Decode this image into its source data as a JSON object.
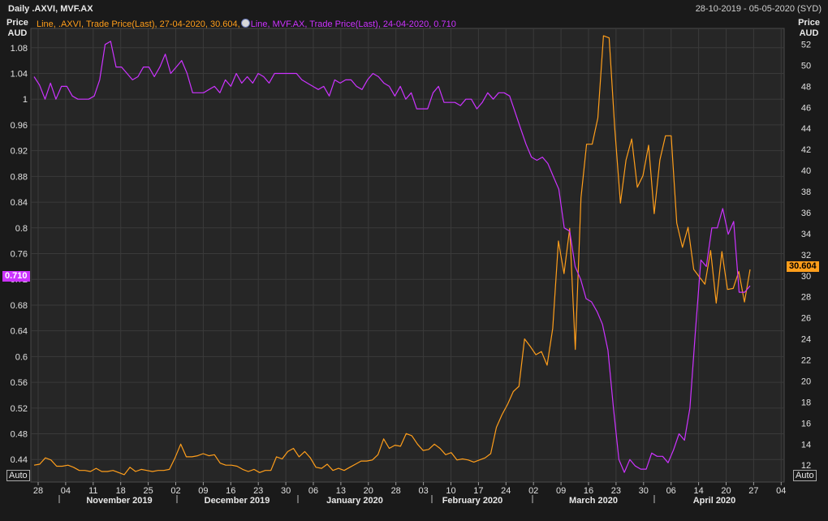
{
  "header": {
    "title": "Daily .AXVI, MVF.AX",
    "date_range": "28-10-2019 - 05-05-2020 (SYD)"
  },
  "legend": {
    "axvi_text": "Line, .AXVI, Trade Price(Last), 27-04-2020, 30.604,",
    "mvf_text": "Line, MVF.AX, Trade Price(Last), 24-04-2020, 0.710"
  },
  "axes": {
    "left_unit_line1": "Price",
    "left_unit_line2": "AUD",
    "right_unit_line1": "Price",
    "right_unit_line2": "AUD",
    "auto_left": "Auto",
    "auto_right": "Auto"
  },
  "last_value_tags": {
    "mvf": "0.710",
    "axvi": "30.604"
  },
  "colors": {
    "background": "#1a1a1a",
    "plot_background": "#262626",
    "grid": "#3a3a3a",
    "axvi": "#ff9e1b",
    "mvf": "#cc33ff"
  },
  "chart_data": {
    "type": "line",
    "x_tick_labels": [
      "28",
      "04",
      "11",
      "18",
      "25",
      "02",
      "09",
      "16",
      "23",
      "30",
      "06",
      "13",
      "20",
      "28",
      "03",
      "10",
      "17",
      "24",
      "02",
      "09",
      "16",
      "23",
      "30",
      "06",
      "14",
      "20",
      "27",
      "04"
    ],
    "month_labels": [
      "November 2019",
      "December 2019",
      "January 2020",
      "February 2020",
      "March 2020",
      "April 2020"
    ],
    "left_axis": {
      "ylim": [
        0.405,
        1.11
      ],
      "ticks": [
        "0.44",
        "0.48",
        "0.52",
        "0.56",
        "0.6",
        "0.64",
        "0.68",
        "0.72",
        "0.76",
        "0.8",
        "0.84",
        "0.88",
        "0.92",
        "0.96",
        "1",
        "1.04",
        "1.08"
      ]
    },
    "right_axis": {
      "ylim": [
        10.4,
        53.5
      ],
      "ticks": [
        "12",
        "14",
        "16",
        "18",
        "20",
        "22",
        "24",
        "26",
        "28",
        "30",
        "32",
        "34",
        "36",
        "38",
        "40",
        "42",
        "44",
        "46",
        "48",
        "50",
        "52"
      ]
    },
    "series": [
      {
        "name": ".AXVI",
        "axis": "right",
        "values": [
          12.0,
          12.1,
          12.7,
          12.5,
          11.9,
          11.9,
          12.0,
          11.8,
          11.5,
          11.5,
          11.4,
          11.7,
          11.4,
          11.4,
          11.5,
          11.3,
          11.1,
          11.8,
          11.4,
          11.6,
          11.5,
          11.4,
          11.5,
          11.5,
          11.6,
          12.7,
          14.0,
          12.8,
          12.8,
          12.9,
          13.1,
          12.9,
          13.0,
          12.2,
          12.0,
          12.0,
          11.9,
          11.6,
          11.4,
          11.6,
          11.3,
          11.5,
          11.5,
          12.8,
          12.6,
          13.3,
          13.6,
          12.8,
          13.3,
          12.7,
          11.8,
          11.7,
          12.1,
          11.5,
          11.7,
          11.5,
          11.8,
          12.1,
          12.4,
          12.4,
          12.5,
          13.0,
          14.5,
          13.6,
          13.9,
          13.8,
          15.0,
          14.8,
          14.0,
          13.4,
          13.5,
          14.0,
          13.6,
          13.0,
          13.2,
          12.5,
          12.6,
          12.5,
          12.3,
          12.5,
          12.7,
          13.1,
          15.6,
          16.8,
          17.8,
          19.0,
          19.5,
          24.0,
          23.3,
          22.5,
          22.8,
          21.5,
          25.0,
          33.3,
          30.2,
          34.5,
          23.0,
          37.4,
          42.5,
          42.5,
          45.0,
          52.8,
          52.6,
          44.0,
          36.9,
          41.0,
          43.0,
          38.4,
          39.5,
          42.4,
          35.9,
          41.0,
          43.3,
          43.3,
          35.0,
          32.7,
          34.6,
          30.6,
          29.9,
          29.2,
          32.4,
          27.4,
          32.3,
          28.7,
          28.8,
          30.4,
          27.5,
          30.6
        ]
      },
      {
        "name": "MVF.AX",
        "axis": "left",
        "values": [
          1.035,
          1.022,
          1.0,
          1.025,
          1.0,
          1.02,
          1.02,
          1.005,
          1.0,
          1.0,
          1.0,
          1.005,
          1.03,
          1.085,
          1.09,
          1.05,
          1.05,
          1.04,
          1.03,
          1.035,
          1.05,
          1.05,
          1.035,
          1.05,
          1.07,
          1.04,
          1.05,
          1.06,
          1.04,
          1.01,
          1.01,
          1.01,
          1.015,
          1.02,
          1.01,
          1.03,
          1.02,
          1.04,
          1.025,
          1.035,
          1.025,
          1.04,
          1.035,
          1.025,
          1.04,
          1.04,
          1.04,
          1.04,
          1.04,
          1.03,
          1.025,
          1.02,
          1.015,
          1.02,
          1.005,
          1.03,
          1.025,
          1.03,
          1.03,
          1.02,
          1.015,
          1.03,
          1.04,
          1.035,
          1.025,
          1.02,
          1.005,
          1.02,
          1.0,
          1.01,
          0.985,
          0.985,
          0.985,
          1.01,
          1.02,
          0.995,
          0.995,
          0.995,
          0.99,
          1.0,
          1.0,
          0.985,
          0.995,
          1.01,
          1.0,
          1.01,
          1.01,
          1.005,
          0.98,
          0.955,
          0.93,
          0.91,
          0.905,
          0.91,
          0.9,
          0.88,
          0.86,
          0.8,
          0.795,
          0.74,
          0.72,
          0.69,
          0.685,
          0.67,
          0.65,
          0.61,
          0.52,
          0.44,
          0.42,
          0.44,
          0.43,
          0.425,
          0.425,
          0.45,
          0.445,
          0.445,
          0.435,
          0.455,
          0.48,
          0.47,
          0.52,
          0.64,
          0.75,
          0.74,
          0.8,
          0.8,
          0.83,
          0.79,
          0.81,
          0.7,
          0.7,
          0.71
        ]
      }
    ]
  }
}
